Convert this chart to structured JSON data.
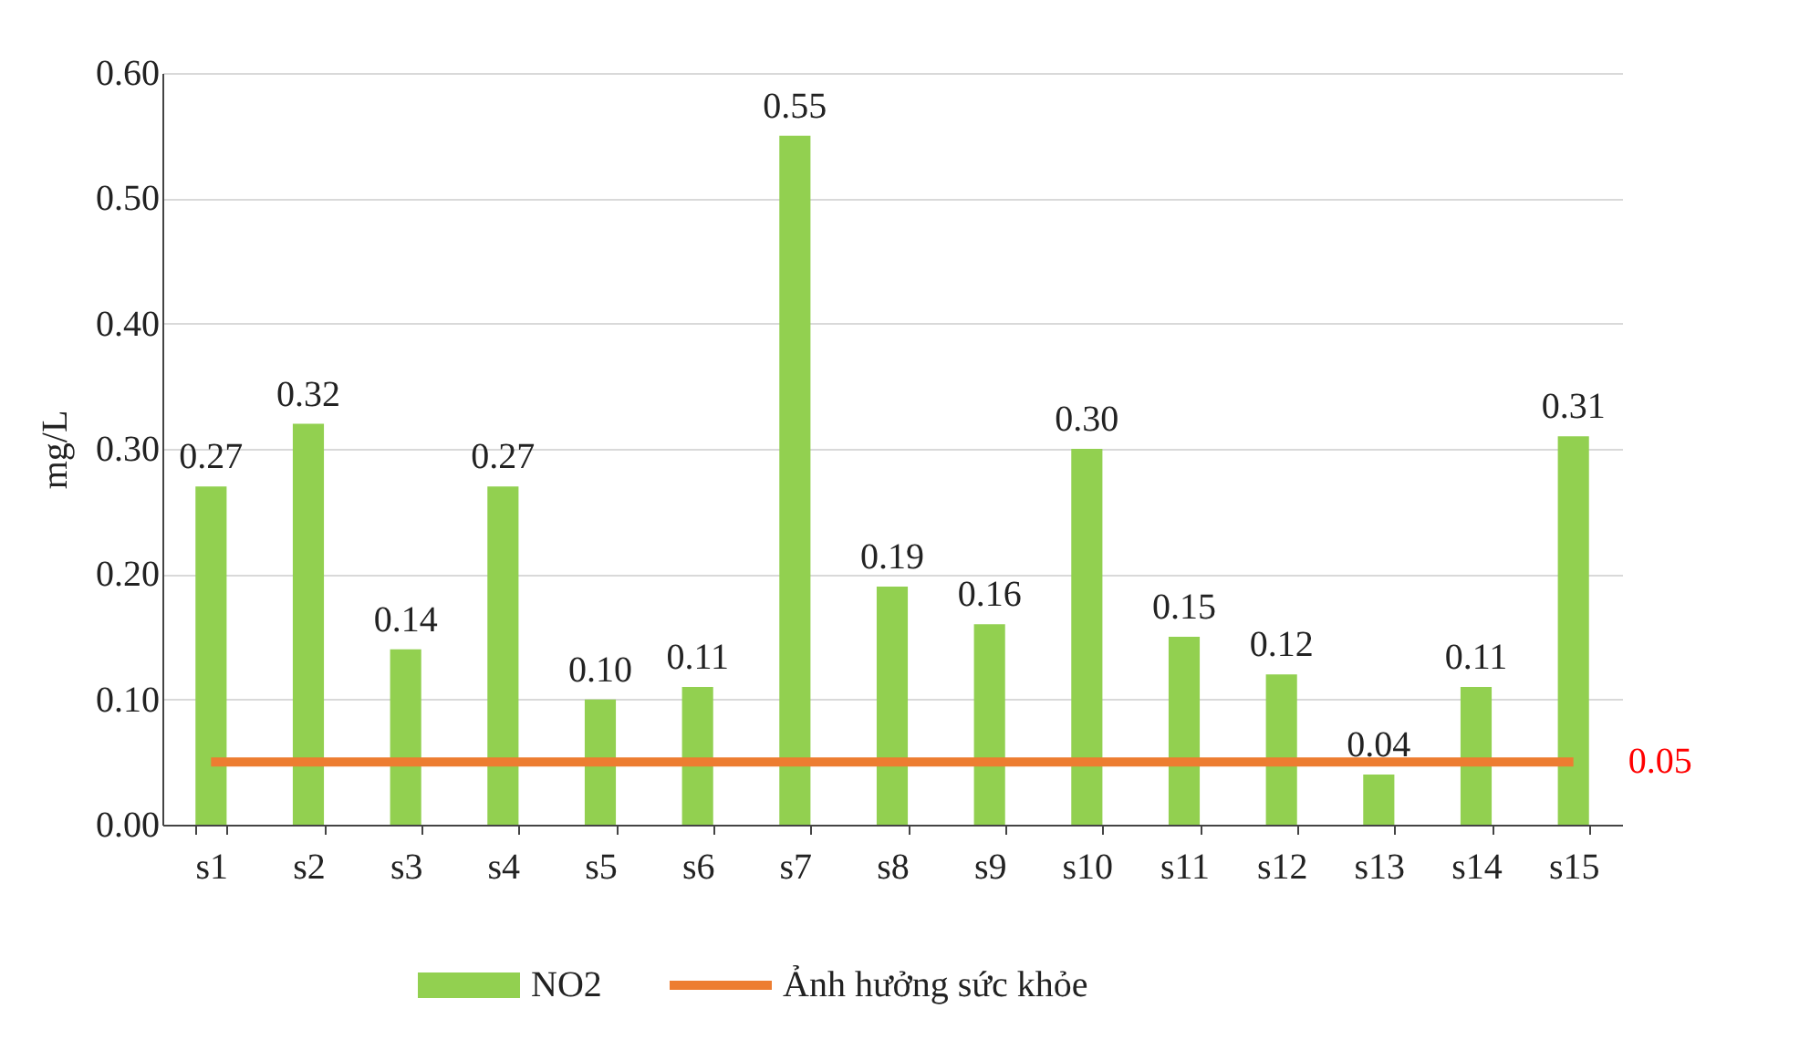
{
  "chart_data": {
    "type": "bar",
    "ylabel": "mg/L",
    "categories": [
      "s1",
      "s2",
      "s3",
      "s4",
      "s5",
      "s6",
      "s7",
      "s8",
      "s9",
      "s10",
      "s11",
      "s12",
      "s13",
      "s14",
      "s15"
    ],
    "series": [
      {
        "name": "NO2",
        "color": "#92d050",
        "values": [
          0.27,
          0.32,
          0.14,
          0.27,
          0.1,
          0.11,
          0.55,
          0.19,
          0.16,
          0.3,
          0.15,
          0.12,
          0.04,
          0.11,
          0.31
        ],
        "value_labels": [
          "0.27",
          "0.32",
          "0.14",
          "0.27",
          "0.10",
          "0.11",
          "0.55",
          "0.19",
          "0.16",
          "0.30",
          "0.15",
          "0.12",
          "0.04",
          "0.11",
          "0.31"
        ]
      },
      {
        "name": "Ảnh hưởng sức khỏe",
        "type": "line",
        "color": "#ed7d31",
        "values": [
          0.05,
          0.05,
          0.05,
          0.05,
          0.05,
          0.05,
          0.05,
          0.05,
          0.05,
          0.05,
          0.05,
          0.05,
          0.05,
          0.05,
          0.05
        ],
        "value_labels": [
          null,
          null,
          null,
          null,
          null,
          null,
          null,
          null,
          null,
          null,
          null,
          null,
          null,
          null,
          "0.05"
        ]
      }
    ],
    "ylim": [
      0,
      0.6
    ],
    "yticks": [
      {
        "value": 0,
        "label": "0.00"
      },
      {
        "value": 0.1,
        "label": "0.10"
      },
      {
        "value": 0.2,
        "label": "0.20"
      },
      {
        "value": 0.3,
        "label": "0.30"
      },
      {
        "value": 0.4,
        "label": "0.40"
      },
      {
        "value": 0.5,
        "label": "0.50"
      },
      {
        "value": 0.6,
        "label": "0.60"
      }
    ],
    "grid": "y",
    "legend": "bottom"
  }
}
